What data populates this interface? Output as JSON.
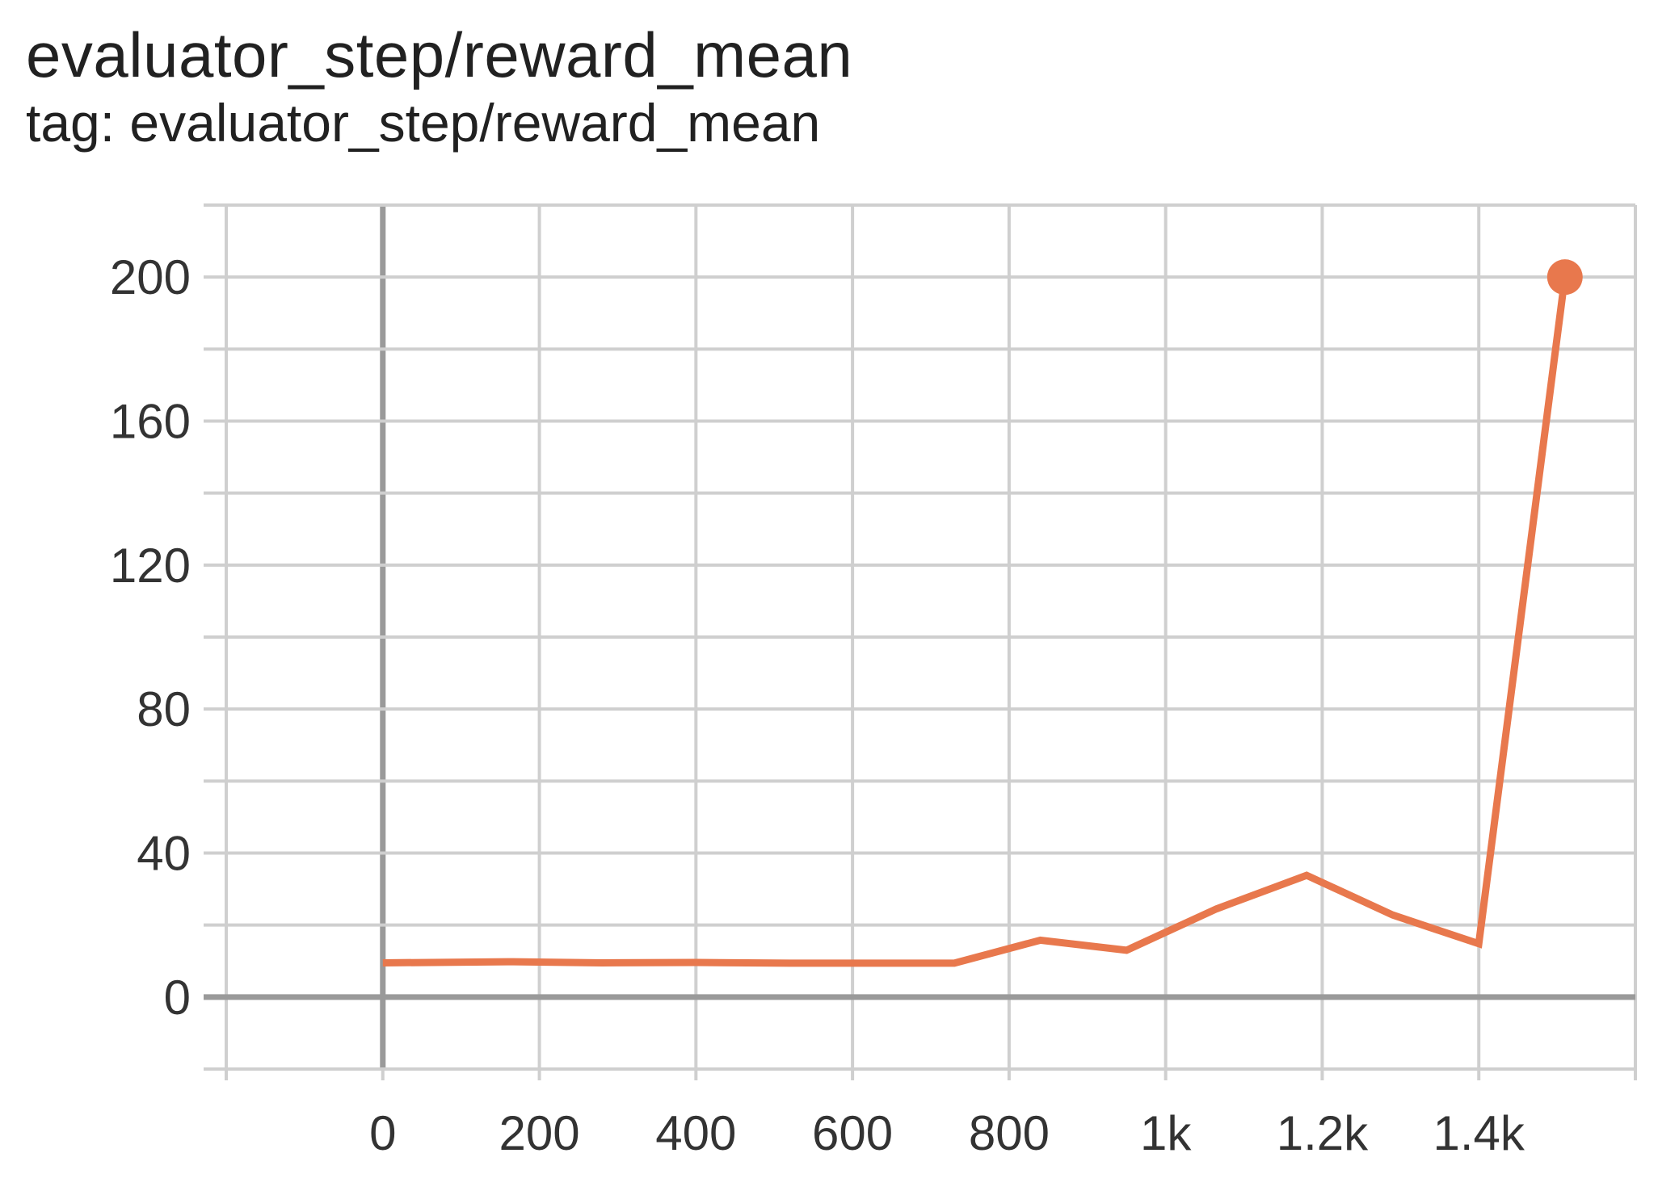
{
  "chart_data": {
    "type": "line",
    "title": "evaluator_step/reward_mean",
    "subtitle": "tag: evaluator_step/reward_mean",
    "xlabel": "",
    "ylabel": "",
    "x_tick_labels": [
      {
        "value": 0,
        "label": "0"
      },
      {
        "value": 200,
        "label": "200"
      },
      {
        "value": 400,
        "label": "400"
      },
      {
        "value": 600,
        "label": "600"
      },
      {
        "value": 800,
        "label": "800"
      },
      {
        "value": 1000,
        "label": "1k"
      },
      {
        "value": 1200,
        "label": "1.2k"
      },
      {
        "value": 1400,
        "label": "1.4k"
      }
    ],
    "y_tick_labels": [
      {
        "value": 0,
        "label": "0"
      },
      {
        "value": 40,
        "label": "40"
      },
      {
        "value": 80,
        "label": "80"
      },
      {
        "value": 120,
        "label": "120"
      },
      {
        "value": 160,
        "label": "160"
      },
      {
        "value": 200,
        "label": "200"
      }
    ],
    "xlim": [
      -200,
      1600
    ],
    "ylim": [
      -20,
      220
    ],
    "grid": true,
    "series": [
      {
        "color": "#e8784d",
        "points": [
          {
            "x": 0,
            "y": 9.5
          },
          {
            "x": 160,
            "y": 9.8
          },
          {
            "x": 280,
            "y": 9.5
          },
          {
            "x": 400,
            "y": 9.6
          },
          {
            "x": 520,
            "y": 9.4
          },
          {
            "x": 620,
            "y": 9.4
          },
          {
            "x": 730,
            "y": 9.4
          },
          {
            "x": 840,
            "y": 15.8
          },
          {
            "x": 950,
            "y": 13.0
          },
          {
            "x": 1065,
            "y": 24.5
          },
          {
            "x": 1180,
            "y": 33.8
          },
          {
            "x": 1290,
            "y": 22.8
          },
          {
            "x": 1400,
            "y": 14.8
          },
          {
            "x": 1510,
            "y": 200.0
          }
        ]
      }
    ]
  }
}
